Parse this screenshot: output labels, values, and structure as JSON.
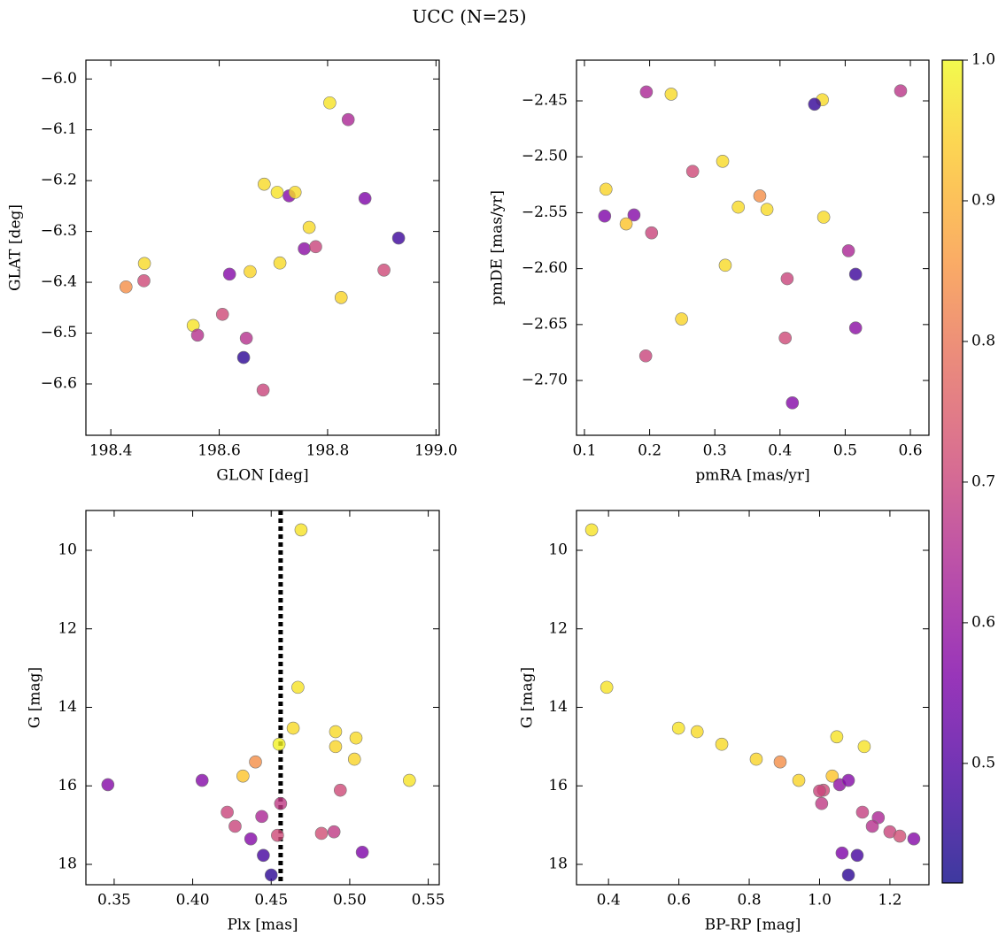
{
  "title": "UCC (N=25)",
  "colorbar": {
    "cmap": "plasma",
    "alpha": 0.8,
    "lim": [
      0.415,
      1.0
    ],
    "ticks": [
      0.5,
      0.6,
      0.7,
      0.8,
      0.9,
      {
        "value": 1.0,
        "label": "1.0"
      }
    ]
  },
  "chart_data": [
    {
      "type": "scatter",
      "xlabel": "GLON [deg]",
      "ylabel": "GLAT [deg]",
      "xlim": [
        198.354,
        199.006
      ],
      "ylim": [
        -6.701,
        -5.963
      ],
      "xticks": [
        198.4,
        198.6,
        198.8,
        {
          "value": 199.0,
          "label": "199.0"
        }
      ],
      "yticks": [
        {
          "value": -6.6,
          "label": "−6.6"
        },
        {
          "value": -6.5,
          "label": "−6.5"
        },
        {
          "value": -6.4,
          "label": "−6.4"
        },
        {
          "value": -6.3,
          "label": "−6.3"
        },
        {
          "value": -6.2,
          "label": "−6.2"
        },
        {
          "value": -6.1,
          "label": "−6.1"
        },
        {
          "value": -6.0,
          "label": "−6.0"
        }
      ],
      "x": [
        198.804,
        198.838,
        198.683,
        198.707,
        198.729,
        198.74,
        198.869,
        198.766,
        198.931,
        198.757,
        198.778,
        198.462,
        198.712,
        198.657,
        198.619,
        198.904,
        198.461,
        198.428,
        198.825,
        198.606,
        198.552,
        198.56,
        198.65,
        198.645,
        198.681
      ],
      "y": [
        -6.047,
        -6.08,
        -6.207,
        -6.223,
        -6.23,
        -6.223,
        -6.235,
        -6.292,
        -6.313,
        -6.334,
        -6.33,
        -6.363,
        -6.362,
        -6.379,
        -6.384,
        -6.376,
        -6.397,
        -6.409,
        -6.43,
        -6.463,
        -6.485,
        -6.504,
        -6.51,
        -6.548,
        -6.612
      ],
      "c": [
        0.97,
        0.64,
        0.96,
        0.97,
        0.57,
        0.96,
        0.56,
        0.96,
        0.47,
        0.58,
        0.7,
        0.96,
        0.96,
        0.95,
        0.57,
        0.71,
        0.71,
        0.84,
        0.95,
        0.71,
        0.97,
        0.66,
        0.66,
        0.45,
        0.7
      ]
    },
    {
      "type": "scatter",
      "xlabel": "pmRA [mas/yr]",
      "ylabel": "pmDE [mas/yr]",
      "xlim": [
        0.0878,
        0.6285
      ],
      "ylim": [
        -2.749,
        -2.4136
      ],
      "xticks": [
        0.1,
        0.2,
        0.3,
        0.4,
        0.5,
        0.6
      ],
      "yticks": [
        {
          "value": -2.7,
          "label": "−2.70"
        },
        {
          "value": -2.65,
          "label": "−2.65"
        },
        {
          "value": -2.6,
          "label": "−2.60"
        },
        {
          "value": -2.55,
          "label": "−2.55"
        },
        {
          "value": -2.5,
          "label": "−2.50"
        },
        {
          "value": -2.45,
          "label": "−2.45"
        }
      ],
      "x": [
        0.195,
        0.233,
        0.465,
        0.453,
        0.585,
        0.266,
        0.312,
        0.133,
        0.131,
        0.176,
        0.164,
        0.203,
        0.336,
        0.369,
        0.38,
        0.467,
        0.505,
        0.516,
        0.316,
        0.411,
        0.249,
        0.408,
        0.516,
        0.194,
        0.419
      ],
      "y": [
        -2.442,
        -2.444,
        -2.449,
        -2.453,
        -2.441,
        -2.513,
        -2.504,
        -2.529,
        -2.553,
        -2.552,
        -2.56,
        -2.568,
        -2.545,
        -2.535,
        -2.547,
        -2.554,
        -2.584,
        -2.605,
        -2.597,
        -2.609,
        -2.645,
        -2.662,
        -2.653,
        -2.678,
        -2.72
      ],
      "c": [
        0.64,
        0.96,
        0.96,
        0.46,
        0.67,
        0.71,
        0.96,
        0.95,
        0.56,
        0.57,
        0.93,
        0.7,
        0.96,
        0.84,
        0.96,
        0.96,
        0.64,
        0.47,
        0.96,
        0.7,
        0.95,
        0.71,
        0.58,
        0.7,
        0.57
      ]
    },
    {
      "type": "scatter",
      "xlabel": "Plx [mas]",
      "ylabel": "G [mag]",
      "xlim": [
        0.332,
        0.557
      ],
      "ylim": [
        18.518,
        8.986
      ],
      "xticks": [
        0.35,
        {
          "value": 0.4,
          "label": "0.40"
        },
        0.45,
        {
          "value": 0.5,
          "label": "0.50"
        },
        0.55
      ],
      "yticks": [
        10,
        12,
        14,
        16,
        18
      ],
      "vline": 0.456,
      "x": [
        0.469,
        0.467,
        0.464,
        0.491,
        0.504,
        0.491,
        0.455,
        0.503,
        0.44,
        0.538,
        0.432,
        0.346,
        0.406,
        0.494,
        0.456,
        0.422,
        0.444,
        0.427,
        0.482,
        0.49,
        0.454,
        0.437,
        0.508,
        0.445,
        0.45
      ],
      "y": [
        9.48,
        13.49,
        14.53,
        14.62,
        14.78,
        15.0,
        14.94,
        15.32,
        15.39,
        15.86,
        15.75,
        15.97,
        15.86,
        16.11,
        16.45,
        16.67,
        16.78,
        17.03,
        17.21,
        17.17,
        17.26,
        17.35,
        17.69,
        17.77,
        18.27
      ],
      "c": [
        0.97,
        0.97,
        0.96,
        0.96,
        0.96,
        0.95,
        0.99,
        0.95,
        0.84,
        0.97,
        0.93,
        0.57,
        0.57,
        0.71,
        0.68,
        0.7,
        0.64,
        0.7,
        0.72,
        0.68,
        0.71,
        0.57,
        0.56,
        0.48,
        0.45
      ]
    },
    {
      "type": "scatter",
      "xlabel": "BP-RP [mag]",
      "ylabel": "G [mag]",
      "xlim": [
        0.309,
        1.311
      ],
      "ylim": [
        18.518,
        8.986
      ],
      "xticks": [
        0.4,
        0.6,
        0.8,
        {
          "value": 1.0,
          "label": "1.0"
        },
        1.2
      ],
      "yticks": [
        10,
        12,
        14,
        16,
        18
      ],
      "x": [
        0.352,
        0.395,
        0.599,
        0.652,
        0.722,
        0.82,
        0.888,
        1.049,
        1.127,
        1.036,
        0.941,
        1.057,
        1.082,
        1.011,
        1.006,
        1.122,
        1.167,
        1.15,
        1.2,
        1.228,
        1.268,
        1.064,
        1.107,
        1.082,
        1.0
      ],
      "y": [
        9.48,
        13.49,
        14.53,
        14.62,
        14.94,
        15.32,
        15.39,
        14.75,
        15.0,
        15.75,
        15.86,
        15.97,
        15.86,
        16.11,
        16.45,
        16.67,
        16.81,
        17.03,
        17.17,
        17.28,
        17.35,
        17.71,
        17.77,
        18.27,
        16.13
      ],
      "c": [
        0.97,
        0.97,
        0.97,
        0.96,
        0.96,
        0.95,
        0.84,
        0.97,
        0.97,
        0.93,
        0.95,
        0.59,
        0.57,
        0.71,
        0.68,
        0.69,
        0.64,
        0.66,
        0.7,
        0.72,
        0.57,
        0.56,
        0.48,
        0.45,
        0.7
      ]
    }
  ]
}
